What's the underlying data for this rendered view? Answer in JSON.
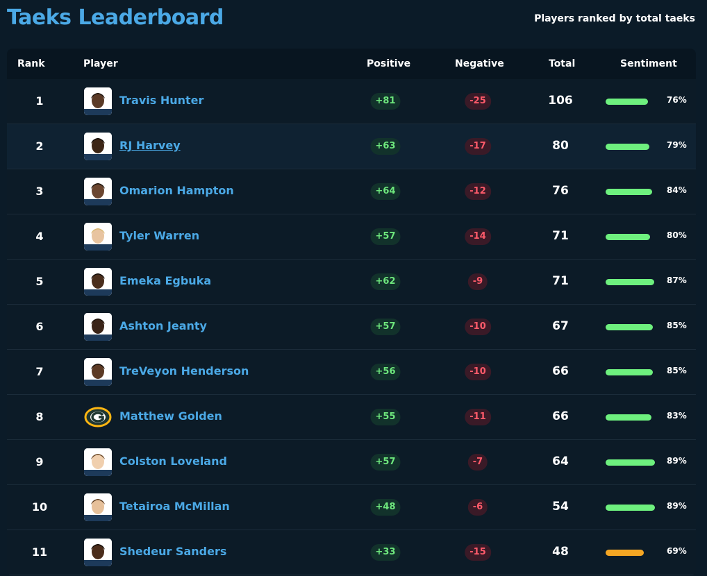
{
  "header": {
    "title": "Taeks Leaderboard",
    "subtitle": "Players ranked by total taeks"
  },
  "columns": {
    "rank": "Rank",
    "player": "Player",
    "positive": "Positive",
    "negative": "Negative",
    "total": "Total",
    "sentiment": "Sentiment"
  },
  "colors": {
    "accent": "#4ba9e6",
    "positive": "#6ee77d",
    "negative": "#ff5b6b",
    "sentiment_high": "#6ef07e",
    "sentiment_mid": "#f5a623"
  },
  "rows": [
    {
      "rank": "1",
      "name": "Travis Hunter",
      "avatar": "player-photo-icon",
      "positive": "+81",
      "negative": "-25",
      "total": "106",
      "sentiment": "76%",
      "sentiment_value": 76,
      "sentiment_color": "#6ef07e"
    },
    {
      "rank": "2",
      "name": "RJ Harvey",
      "avatar": "player-photo-icon",
      "positive": "+63",
      "negative": "-17",
      "total": "80",
      "sentiment": "79%",
      "sentiment_value": 79,
      "sentiment_color": "#6ef07e"
    },
    {
      "rank": "3",
      "name": "Omarion Hampton",
      "avatar": "player-photo-icon",
      "positive": "+64",
      "negative": "-12",
      "total": "76",
      "sentiment": "84%",
      "sentiment_value": 84,
      "sentiment_color": "#6ef07e"
    },
    {
      "rank": "4",
      "name": "Tyler Warren",
      "avatar": "player-photo-icon",
      "positive": "+57",
      "negative": "-14",
      "total": "71",
      "sentiment": "80%",
      "sentiment_value": 80,
      "sentiment_color": "#6ef07e"
    },
    {
      "rank": "5",
      "name": "Emeka Egbuka",
      "avatar": "player-photo-icon",
      "positive": "+62",
      "negative": "-9",
      "total": "71",
      "sentiment": "87%",
      "sentiment_value": 87,
      "sentiment_color": "#6ef07e"
    },
    {
      "rank": "6",
      "name": "Ashton Jeanty",
      "avatar": "player-photo-icon",
      "positive": "+57",
      "negative": "-10",
      "total": "67",
      "sentiment": "85%",
      "sentiment_value": 85,
      "sentiment_color": "#6ef07e"
    },
    {
      "rank": "7",
      "name": "TreVeyon Henderson",
      "avatar": "player-photo-icon",
      "positive": "+56",
      "negative": "-10",
      "total": "66",
      "sentiment": "85%",
      "sentiment_value": 85,
      "sentiment_color": "#6ef07e"
    },
    {
      "rank": "8",
      "name": "Matthew Golden",
      "avatar": "team-logo-icon",
      "positive": "+55",
      "negative": "-11",
      "total": "66",
      "sentiment": "83%",
      "sentiment_value": 83,
      "sentiment_color": "#6ef07e"
    },
    {
      "rank": "9",
      "name": "Colston Loveland",
      "avatar": "player-photo-icon",
      "positive": "+57",
      "negative": "-7",
      "total": "64",
      "sentiment": "89%",
      "sentiment_value": 89,
      "sentiment_color": "#6ef07e"
    },
    {
      "rank": "10",
      "name": "Tetairoa McMillan",
      "avatar": "player-photo-icon",
      "positive": "+48",
      "negative": "-6",
      "total": "54",
      "sentiment": "89%",
      "sentiment_value": 89,
      "sentiment_color": "#6ef07e"
    },
    {
      "rank": "11",
      "name": "Shedeur Sanders",
      "avatar": "player-photo-icon",
      "positive": "+33",
      "negative": "-15",
      "total": "48",
      "sentiment": "69%",
      "sentiment_value": 69,
      "sentiment_color": "#f5a623"
    }
  ]
}
